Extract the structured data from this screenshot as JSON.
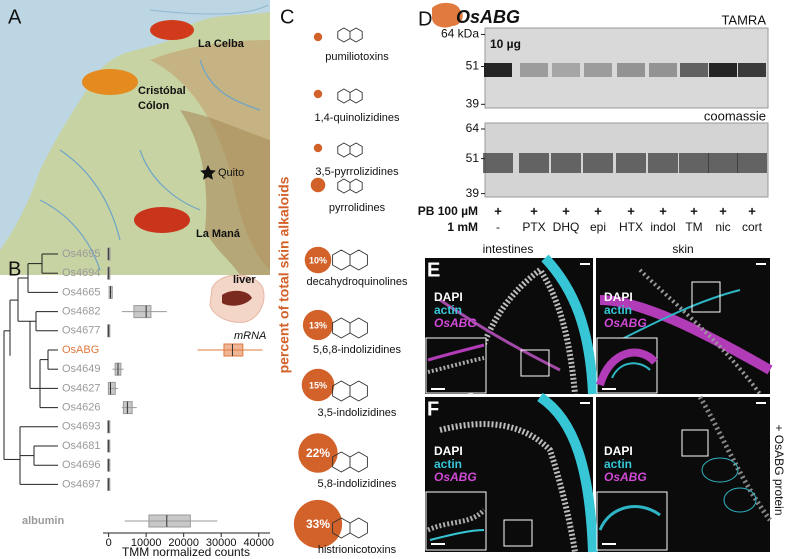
{
  "panel_a": {
    "letter": "A",
    "places": {
      "la_celba": "La Celba",
      "cristobal": [
        "Cristóbal",
        "Cólon"
      ],
      "quito": "Quito",
      "la_mana": "La Maná"
    }
  },
  "panel_b": {
    "letter": "B",
    "type": "box",
    "categories": [
      "Os4695",
      "Os4694",
      "Os4665",
      "Os4682",
      "Os4677",
      "OsABG",
      "Os4649",
      "Os4627",
      "Os4626",
      "Os4693",
      "Os4681",
      "Os4696",
      "Os4697",
      "albumin"
    ],
    "colors": [
      "#9a9a9a",
      "#9a9a9a",
      "#9a9a9a",
      "#9a9a9a",
      "#9a9a9a",
      "#e07a3e",
      "#9a9a9a",
      "#9a9a9a",
      "#9a9a9a",
      "#9a9a9a",
      "#9a9a9a",
      "#9a9a9a",
      "#9a9a9a",
      "#9a9a9a"
    ],
    "stats": {
      "min": [
        0,
        0,
        300,
        3500,
        0,
        23700,
        1000,
        0,
        3500,
        0,
        0,
        0,
        0,
        4300
      ],
      "q1": [
        0,
        0,
        400,
        7000,
        0,
        31000,
        2000,
        200,
        4200,
        0,
        0,
        0,
        0,
        11000
      ],
      "median": [
        0,
        0,
        500,
        10000,
        0,
        33000,
        2500,
        500,
        5000,
        0,
        0,
        0,
        0,
        15500
      ],
      "q3": [
        100,
        50,
        700,
        11000,
        50,
        35500,
        3000,
        1500,
        6000,
        50,
        50,
        50,
        50,
        21500
      ],
      "max": [
        200,
        100,
        900,
        15500,
        100,
        41000,
        4000,
        2500,
        7500,
        100,
        100,
        100,
        100,
        29000
      ]
    },
    "x_label": "TMM normalized counts",
    "xlim": [
      -1500,
      43000
    ],
    "xticks": [
      0,
      10000,
      20000,
      30000,
      40000
    ],
    "inset": {
      "title": "liver",
      "subtitle": "mRNA"
    }
  },
  "panel_c": {
    "letter": "C",
    "y_label": "percent of total skin alkaloids",
    "color": "#d2622a",
    "classes": [
      "pumiliotoxins",
      "1,4-quinolizidines",
      "3,5-pyrrolizidines",
      "pyrrolidines",
      "decahydroquinolines",
      "5,6,8-indolizidines",
      "3,5-indolizidines",
      "5,8-indolizidines",
      "histrionicotoxins"
    ],
    "values": [
      1,
      1,
      1,
      3,
      10,
      13,
      15,
      22,
      33
    ],
    "value_labels": [
      null,
      null,
      null,
      null,
      "10%",
      "13%",
      "15%",
      "22%",
      "33%"
    ]
  },
  "panel_d": {
    "letter": "D",
    "title": "OsABG",
    "top_blot": "TAMRA",
    "amount": "10 µg",
    "bottom_blot": "coomassie",
    "ylim": [
      67,
      38
    ],
    "log": true,
    "top_ticks": [
      {
        "value": 64,
        "label": "64 kDa"
      },
      51,
      39
    ],
    "bottom_ticks": [
      64,
      51,
      39
    ],
    "pb_label": "PB 100 µM",
    "pb_marks": [
      "+",
      "+",
      "+",
      "+",
      "+",
      "+",
      "+",
      "+",
      "+"
    ],
    "inhibitor_label": "1 mM",
    "inhibitors": [
      "-",
      "PTX",
      "DHQ",
      "epi",
      "HTX",
      "indol",
      "TM",
      "nic",
      "cort"
    ]
  },
  "panel_e": {
    "letter": "E",
    "columns": [
      "intestines",
      "skin"
    ],
    "stains": [
      "DAPI",
      "actin",
      "OsABG"
    ]
  },
  "panel_f": {
    "letter": "F",
    "side_label": "+ OsABG protein"
  }
}
